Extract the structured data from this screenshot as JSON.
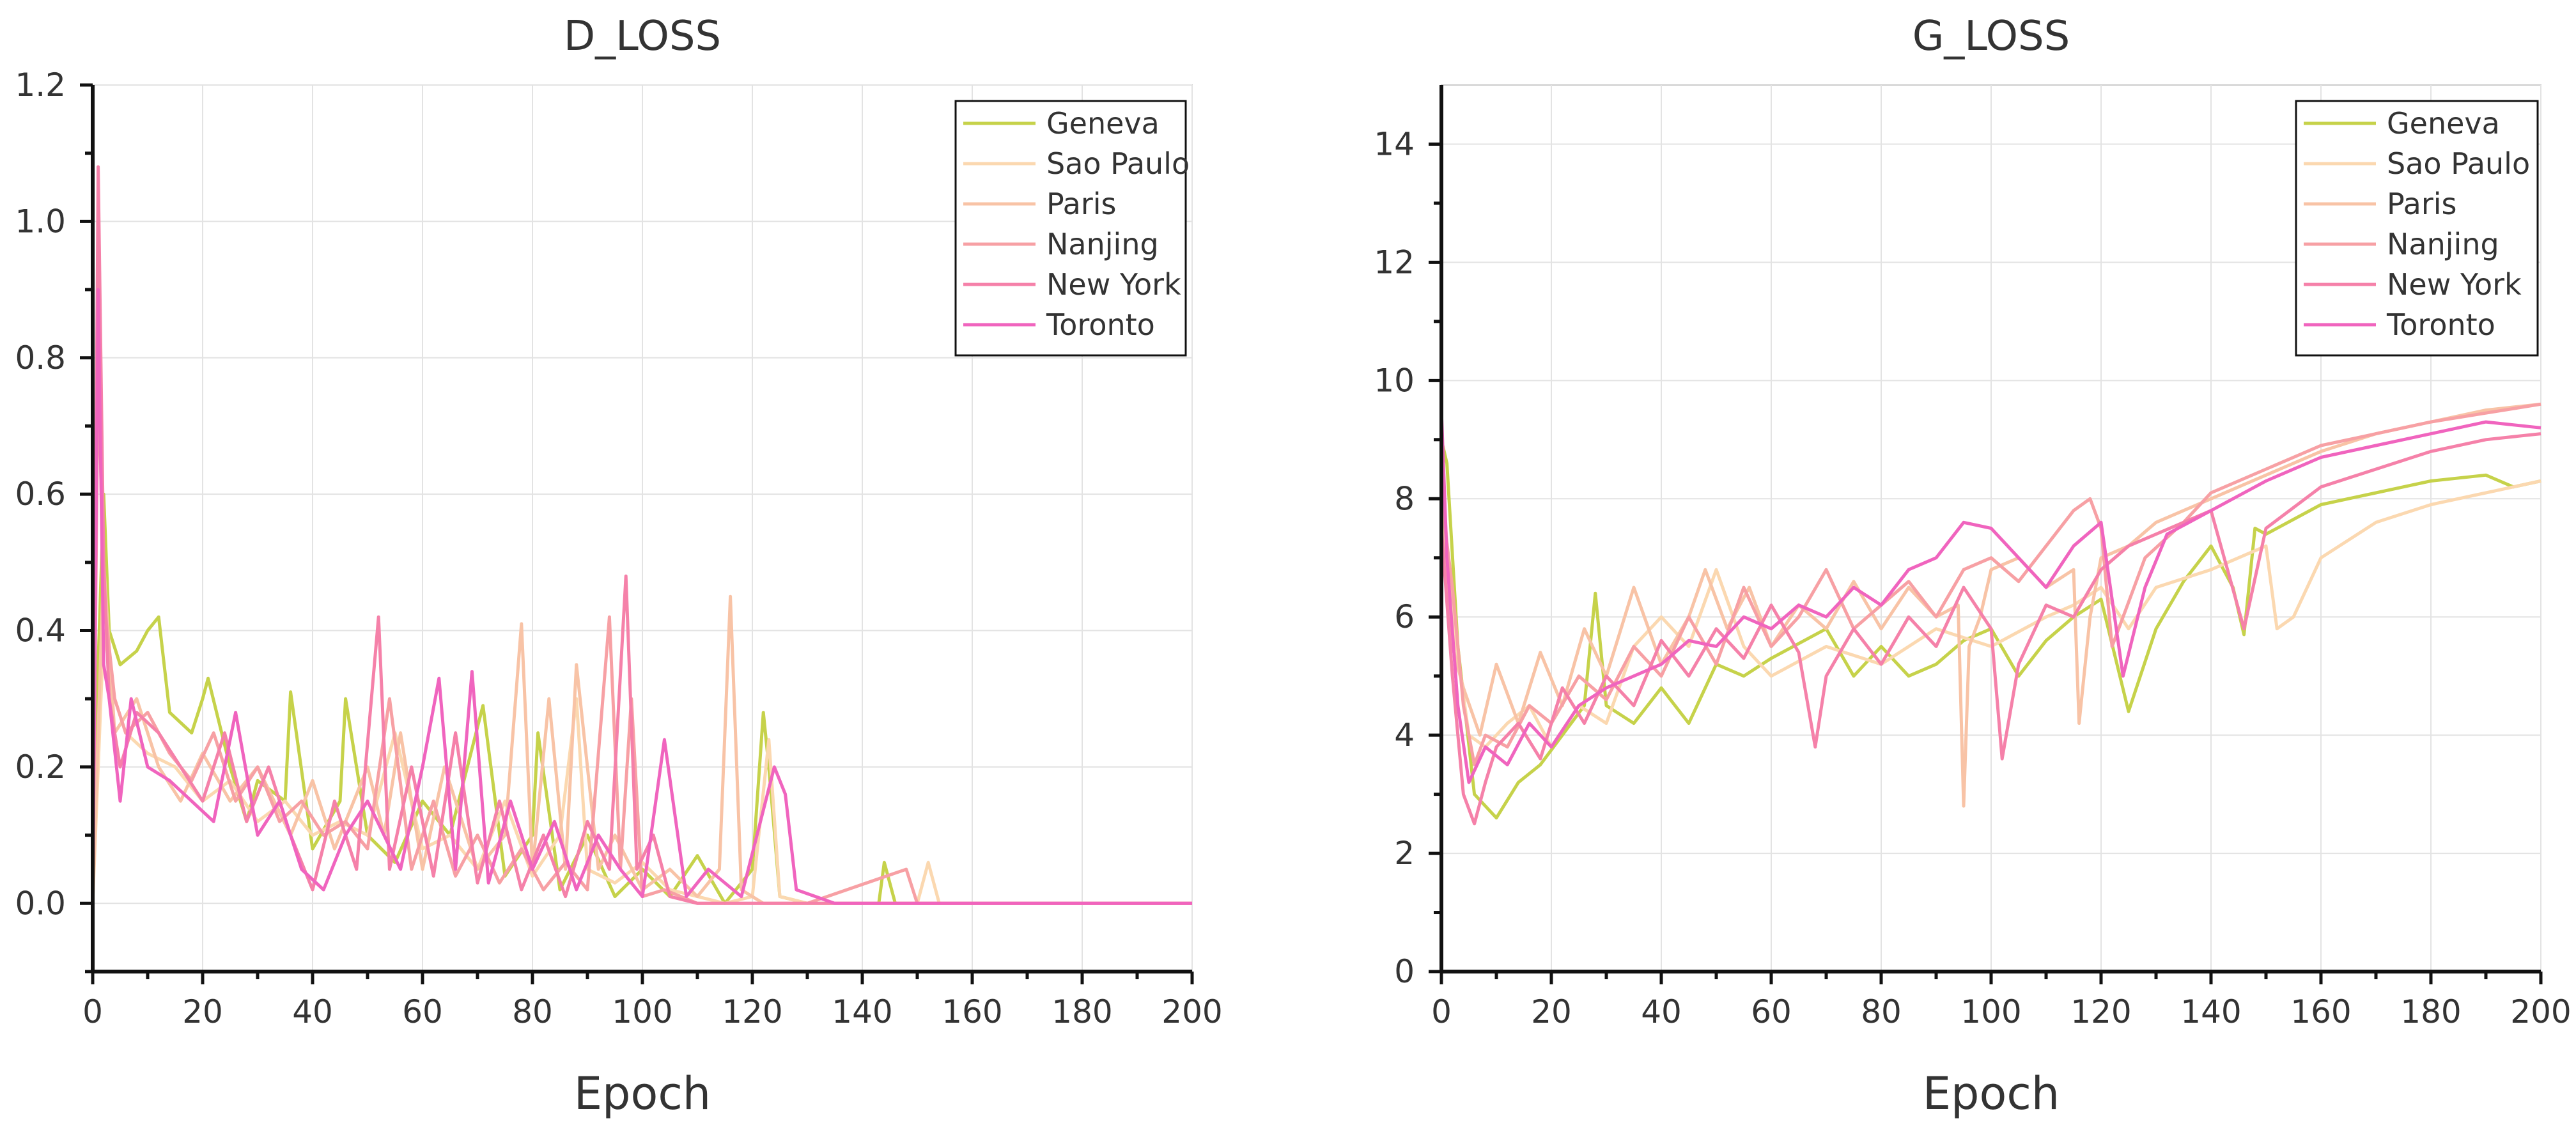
{
  "chart_data": [
    {
      "type": "line",
      "title": "D_LOSS",
      "xlabel": "Epoch",
      "ylabel": "",
      "xlim": [
        0,
        200
      ],
      "ylim": [
        -0.1,
        1.2
      ],
      "xticks": [
        0,
        20,
        40,
        60,
        80,
        100,
        120,
        140,
        160,
        180,
        200
      ],
      "yticks": [
        0.0,
        0.2,
        0.4,
        0.6,
        0.8,
        1.0,
        1.2
      ],
      "ytick_labels": [
        "0.0",
        "0.2",
        "0.4",
        "0.6",
        "0.8",
        "1.0",
        "1.2"
      ],
      "grid": true,
      "legend_position": "top-right",
      "series": [
        {
          "name": "Geneva",
          "color": "#c6d24a",
          "x": [
            0,
            1,
            2,
            3,
            5,
            8,
            10,
            12,
            14,
            18,
            20,
            21,
            25,
            28,
            30,
            35,
            36,
            40,
            45,
            46,
            50,
            55,
            60,
            65,
            71,
            75,
            80,
            81,
            85,
            90,
            95,
            100,
            105,
            110,
            115,
            120,
            122,
            123,
            125,
            130,
            140,
            143,
            144,
            146,
            150,
            160,
            180,
            200
          ],
          "y": [
            0.0,
            0.35,
            0.6,
            0.4,
            0.35,
            0.37,
            0.4,
            0.42,
            0.28,
            0.25,
            0.3,
            0.33,
            0.2,
            0.12,
            0.18,
            0.15,
            0.31,
            0.08,
            0.15,
            0.3,
            0.1,
            0.06,
            0.15,
            0.1,
            0.29,
            0.04,
            0.1,
            0.25,
            0.02,
            0.1,
            0.01,
            0.05,
            0.01,
            0.07,
            0.0,
            0.05,
            0.28,
            0.2,
            0.01,
            0.0,
            0.0,
            0.0,
            0.06,
            0.0,
            0.0,
            0.0,
            0.0,
            0.0
          ]
        },
        {
          "name": "Sao Paulo",
          "color": "#fbd8b0",
          "x": [
            0,
            2,
            4,
            6,
            10,
            15,
            20,
            25,
            30,
            35,
            40,
            45,
            50,
            55,
            60,
            65,
            70,
            75,
            80,
            85,
            88,
            90,
            95,
            100,
            105,
            110,
            115,
            120,
            123,
            125,
            130,
            140,
            150,
            152,
            154,
            160,
            180,
            200
          ],
          "y": [
            0.0,
            0.4,
            0.3,
            0.25,
            0.22,
            0.2,
            0.15,
            0.18,
            0.12,
            0.15,
            0.1,
            0.12,
            0.1,
            0.25,
            0.08,
            0.1,
            0.05,
            0.15,
            0.04,
            0.1,
            0.3,
            0.05,
            0.03,
            0.06,
            0.02,
            0.01,
            0.0,
            0.01,
            0.24,
            0.01,
            0.0,
            0.0,
            0.0,
            0.06,
            0.0,
            0.0,
            0.0,
            0.0
          ]
        },
        {
          "name": "Paris",
          "color": "#f8c3a6",
          "x": [
            0,
            2,
            4,
            8,
            12,
            16,
            20,
            25,
            30,
            36,
            40,
            44,
            50,
            53,
            56,
            60,
            64,
            70,
            75,
            78,
            80,
            83,
            86,
            88,
            92,
            95,
            100,
            105,
            110,
            114,
            116,
            118,
            122,
            125,
            130,
            140,
            160,
            180,
            200
          ],
          "y": [
            0.0,
            0.5,
            0.25,
            0.3,
            0.2,
            0.15,
            0.22,
            0.15,
            0.2,
            0.1,
            0.18,
            0.08,
            0.2,
            0.1,
            0.25,
            0.05,
            0.2,
            0.05,
            0.1,
            0.41,
            0.05,
            0.3,
            0.05,
            0.35,
            0.05,
            0.1,
            0.02,
            0.05,
            0.01,
            0.05,
            0.45,
            0.02,
            0.0,
            0.0,
            0.0,
            0.0,
            0.0,
            0.0,
            0.0
          ]
        },
        {
          "name": "Nanjing",
          "color": "#f7a0a4",
          "x": [
            0,
            1,
            2,
            4,
            6,
            10,
            14,
            18,
            22,
            26,
            30,
            34,
            38,
            42,
            46,
            50,
            54,
            58,
            62,
            66,
            70,
            74,
            78,
            82,
            86,
            90,
            94,
            96,
            98,
            100,
            104,
            110,
            120,
            130,
            150,
            148,
            160,
            200
          ],
          "y": [
            0.0,
            0.8,
            0.45,
            0.3,
            0.25,
            0.28,
            0.22,
            0.18,
            0.25,
            0.15,
            0.2,
            0.12,
            0.15,
            0.1,
            0.12,
            0.08,
            0.3,
            0.05,
            0.15,
            0.04,
            0.1,
            0.03,
            0.08,
            0.02,
            0.06,
            0.02,
            0.42,
            0.05,
            0.3,
            0.01,
            0.02,
            0.0,
            0.0,
            0.0,
            0.0,
            0.05,
            0.0,
            0.0
          ]
        },
        {
          "name": "New York",
          "color": "#f581a9",
          "x": [
            0,
            1,
            2,
            3,
            5,
            8,
            12,
            16,
            20,
            24,
            28,
            32,
            36,
            40,
            44,
            48,
            52,
            54,
            58,
            62,
            66,
            70,
            74,
            78,
            82,
            86,
            90,
            94,
            97,
            99,
            102,
            105,
            110,
            120,
            130,
            200
          ],
          "y": [
            0.0,
            1.08,
            0.5,
            0.3,
            0.2,
            0.28,
            0.25,
            0.2,
            0.15,
            0.25,
            0.12,
            0.2,
            0.1,
            0.02,
            0.15,
            0.05,
            0.42,
            0.05,
            0.2,
            0.04,
            0.25,
            0.03,
            0.15,
            0.02,
            0.1,
            0.01,
            0.12,
            0.05,
            0.48,
            0.05,
            0.1,
            0.01,
            0.0,
            0.0,
            0.0,
            0.0
          ]
        },
        {
          "name": "Toronto",
          "color": "#f064be",
          "x": [
            0,
            1,
            2,
            3,
            5,
            7,
            10,
            14,
            18,
            22,
            26,
            30,
            34,
            38,
            42,
            46,
            50,
            56,
            60,
            63,
            66,
            69,
            72,
            76,
            80,
            84,
            88,
            92,
            96,
            100,
            104,
            108,
            112,
            118,
            124,
            126,
            128,
            135,
            200
          ],
          "y": [
            0.0,
            0.9,
            0.35,
            0.3,
            0.15,
            0.3,
            0.2,
            0.18,
            0.15,
            0.12,
            0.28,
            0.1,
            0.15,
            0.05,
            0.02,
            0.1,
            0.15,
            0.05,
            0.2,
            0.33,
            0.05,
            0.34,
            0.03,
            0.15,
            0.05,
            0.12,
            0.02,
            0.1,
            0.05,
            0.01,
            0.24,
            0.01,
            0.05,
            0.01,
            0.2,
            0.16,
            0.02,
            0.0,
            0.0
          ]
        }
      ]
    },
    {
      "type": "line",
      "title": "G_LOSS",
      "xlabel": "Epoch",
      "ylabel": "",
      "xlim": [
        0,
        200
      ],
      "ylim": [
        0,
        15
      ],
      "xticks": [
        0,
        20,
        40,
        60,
        80,
        100,
        120,
        140,
        160,
        180,
        200
      ],
      "yticks": [
        0,
        2,
        4,
        6,
        8,
        10,
        12,
        14
      ],
      "ytick_labels": [
        "0",
        "2",
        "4",
        "6",
        "8",
        "10",
        "12",
        "14"
      ],
      "grid": true,
      "legend_position": "top-right",
      "series": [
        {
          "name": "Geneva",
          "color": "#c6d24a",
          "x": [
            0,
            1,
            3,
            6,
            10,
            14,
            18,
            22,
            26,
            28,
            30,
            35,
            40,
            45,
            50,
            55,
            60,
            70,
            75,
            80,
            85,
            90,
            95,
            100,
            105,
            110,
            115,
            120,
            125,
            130,
            135,
            140,
            144,
            146,
            148,
            150,
            160,
            170,
            180,
            190,
            195,
            200
          ],
          "y": [
            9.0,
            8.6,
            5.5,
            3.0,
            2.6,
            3.2,
            3.5,
            4.0,
            4.5,
            6.4,
            4.5,
            4.2,
            4.8,
            4.2,
            5.2,
            5.0,
            5.3,
            5.8,
            5.0,
            5.5,
            5.0,
            5.2,
            5.6,
            5.8,
            5.0,
            5.6,
            6.0,
            6.3,
            4.4,
            5.8,
            6.6,
            7.2,
            6.5,
            5.7,
            7.5,
            7.4,
            7.9,
            8.1,
            8.3,
            8.4,
            8.2,
            8.3
          ]
        },
        {
          "name": "Sao Paulo",
          "color": "#fbd8b0",
          "x": [
            0,
            2,
            5,
            8,
            12,
            16,
            20,
            25,
            30,
            35,
            40,
            45,
            50,
            55,
            60,
            70,
            80,
            90,
            100,
            110,
            115,
            120,
            125,
            130,
            140,
            150,
            152,
            155,
            160,
            170,
            180,
            190,
            200
          ],
          "y": [
            8.5,
            6.0,
            4.0,
            3.8,
            4.2,
            4.5,
            3.8,
            4.5,
            4.2,
            5.5,
            6.0,
            5.5,
            6.8,
            5.5,
            5.0,
            5.5,
            5.2,
            5.8,
            5.5,
            6.0,
            6.2,
            6.5,
            5.8,
            6.5,
            6.8,
            7.2,
            5.8,
            6.0,
            7.0,
            7.6,
            7.9,
            8.1,
            8.3
          ]
        },
        {
          "name": "Paris",
          "color": "#f8c3a6",
          "x": [
            0,
            2,
            4,
            7,
            10,
            14,
            18,
            22,
            26,
            30,
            35,
            40,
            45,
            48,
            52,
            56,
            60,
            65,
            70,
            75,
            80,
            85,
            90,
            94,
            95,
            96,
            98,
            100,
            105,
            110,
            115,
            116,
            118,
            120,
            125,
            130,
            140,
            150,
            160,
            170,
            180,
            190,
            200
          ],
          "y": [
            8.0,
            5.5,
            4.8,
            4.0,
            5.2,
            4.2,
            5.4,
            4.5,
            5.8,
            5.0,
            6.5,
            5.2,
            6.0,
            6.8,
            5.8,
            6.5,
            5.5,
            6.2,
            5.8,
            6.6,
            5.8,
            6.5,
            6.0,
            6.2,
            2.8,
            5.5,
            6.0,
            6.8,
            7.0,
            6.5,
            6.8,
            4.2,
            6.0,
            7.0,
            7.2,
            7.6,
            8.0,
            8.4,
            8.8,
            9.1,
            9.3,
            9.5,
            9.6
          ]
        },
        {
          "name": "Nanjing",
          "color": "#f7a0a4",
          "x": [
            0,
            2,
            4,
            6,
            8,
            12,
            16,
            20,
            25,
            30,
            35,
            40,
            45,
            50,
            55,
            60,
            65,
            70,
            75,
            80,
            85,
            90,
            95,
            100,
            105,
            110,
            115,
            118,
            120,
            122,
            124,
            128,
            135,
            140,
            150,
            160,
            170,
            180,
            190,
            200
          ],
          "y": [
            8.0,
            6.5,
            4.5,
            3.5,
            4.0,
            3.8,
            4.5,
            4.2,
            5.0,
            4.6,
            5.5,
            5.0,
            6.0,
            5.2,
            6.5,
            5.5,
            6.0,
            6.8,
            5.8,
            6.2,
            6.6,
            6.0,
            6.8,
            7.0,
            6.6,
            7.2,
            7.8,
            8.0,
            7.5,
            5.5,
            6.0,
            7.0,
            7.6,
            8.1,
            8.5,
            8.9,
            9.1,
            9.3,
            9.45,
            9.6
          ]
        },
        {
          "name": "New York",
          "color": "#f581a9",
          "x": [
            0,
            2,
            4,
            6,
            8,
            10,
            14,
            18,
            22,
            26,
            30,
            35,
            40,
            45,
            50,
            55,
            60,
            65,
            68,
            70,
            75,
            80,
            85,
            90,
            95,
            100,
            102,
            105,
            110,
            115,
            120,
            125,
            130,
            140,
            146,
            150,
            160,
            170,
            180,
            190,
            200
          ],
          "y": [
            7.5,
            5.0,
            3.0,
            2.5,
            3.2,
            3.8,
            4.2,
            3.6,
            4.8,
            4.2,
            5.0,
            4.5,
            5.6,
            5.0,
            5.8,
            5.3,
            6.2,
            5.4,
            3.8,
            5.0,
            5.8,
            5.2,
            6.0,
            5.5,
            6.5,
            5.8,
            3.6,
            5.2,
            6.2,
            6.0,
            6.8,
            7.2,
            7.4,
            7.8,
            5.8,
            7.5,
            8.2,
            8.5,
            8.8,
            9.0,
            9.1
          ]
        },
        {
          "name": "Toronto",
          "color": "#f064be",
          "x": [
            0,
            1,
            3,
            5,
            8,
            12,
            16,
            20,
            25,
            30,
            35,
            40,
            45,
            50,
            55,
            60,
            65,
            70,
            75,
            80,
            85,
            90,
            95,
            100,
            105,
            110,
            115,
            120,
            124,
            128,
            132,
            140,
            150,
            160,
            170,
            180,
            190,
            200
          ],
          "y": [
            9.5,
            7.0,
            4.5,
            3.2,
            3.8,
            3.5,
            4.2,
            3.8,
            4.5,
            4.8,
            5.0,
            5.2,
            5.6,
            5.5,
            6.0,
            5.8,
            6.2,
            6.0,
            6.5,
            6.2,
            6.8,
            7.0,
            7.6,
            7.5,
            7.0,
            6.5,
            7.2,
            7.6,
            5.0,
            6.5,
            7.4,
            7.8,
            8.3,
            8.7,
            8.9,
            9.1,
            9.3,
            9.2
          ]
        }
      ]
    }
  ]
}
